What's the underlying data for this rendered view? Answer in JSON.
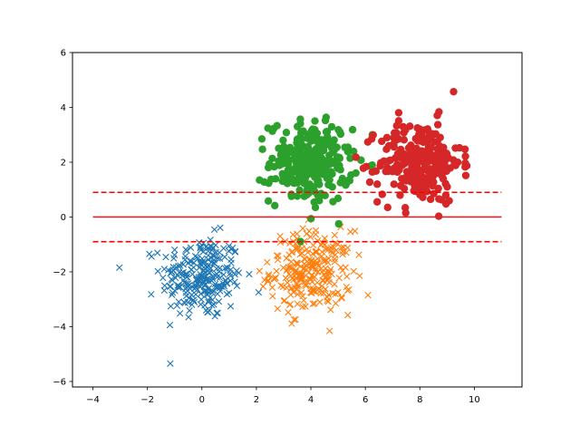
{
  "chart_data": {
    "type": "scatter",
    "title": "",
    "xlabel": "",
    "ylabel": "",
    "xlim": [
      -4.75,
      11.75
    ],
    "ylim": [
      -6.2,
      6.0
    ],
    "x_ticks": [
      -4,
      -2,
      0,
      2,
      4,
      6,
      8,
      10
    ],
    "y_ticks": [
      -6,
      -4,
      -2,
      0,
      2,
      4,
      6
    ],
    "grid": false,
    "legend": "none",
    "clusters": [
      {
        "marker": "x",
        "color": "#1f77b4",
        "center": [
          0.0,
          -2.2
        ],
        "spread": [
          0.75,
          0.75
        ],
        "count": 250
      },
      {
        "marker": "x",
        "color": "#ff7f0e",
        "center": [
          4.0,
          -2.0
        ],
        "spread": [
          0.75,
          0.75
        ],
        "count": 250
      },
      {
        "marker": "circle",
        "color": "#2ca02c",
        "center": [
          4.0,
          2.0
        ],
        "spread": [
          0.75,
          0.75
        ],
        "count": 250
      },
      {
        "marker": "circle",
        "color": "#d62728",
        "center": [
          8.0,
          2.0
        ],
        "spread": [
          0.75,
          0.75
        ],
        "count": 250
      }
    ],
    "lines": [
      {
        "y": 0,
        "x_range": [
          -4,
          11
        ],
        "style": "solid",
        "color": "#d62728"
      },
      {
        "y": 0.9,
        "x_range": [
          -4,
          11
        ],
        "style": "dashed",
        "color": "#ff0000"
      },
      {
        "y": -0.9,
        "x_range": [
          -4,
          11
        ],
        "style": "dashed",
        "color": "#ff0000"
      }
    ]
  }
}
